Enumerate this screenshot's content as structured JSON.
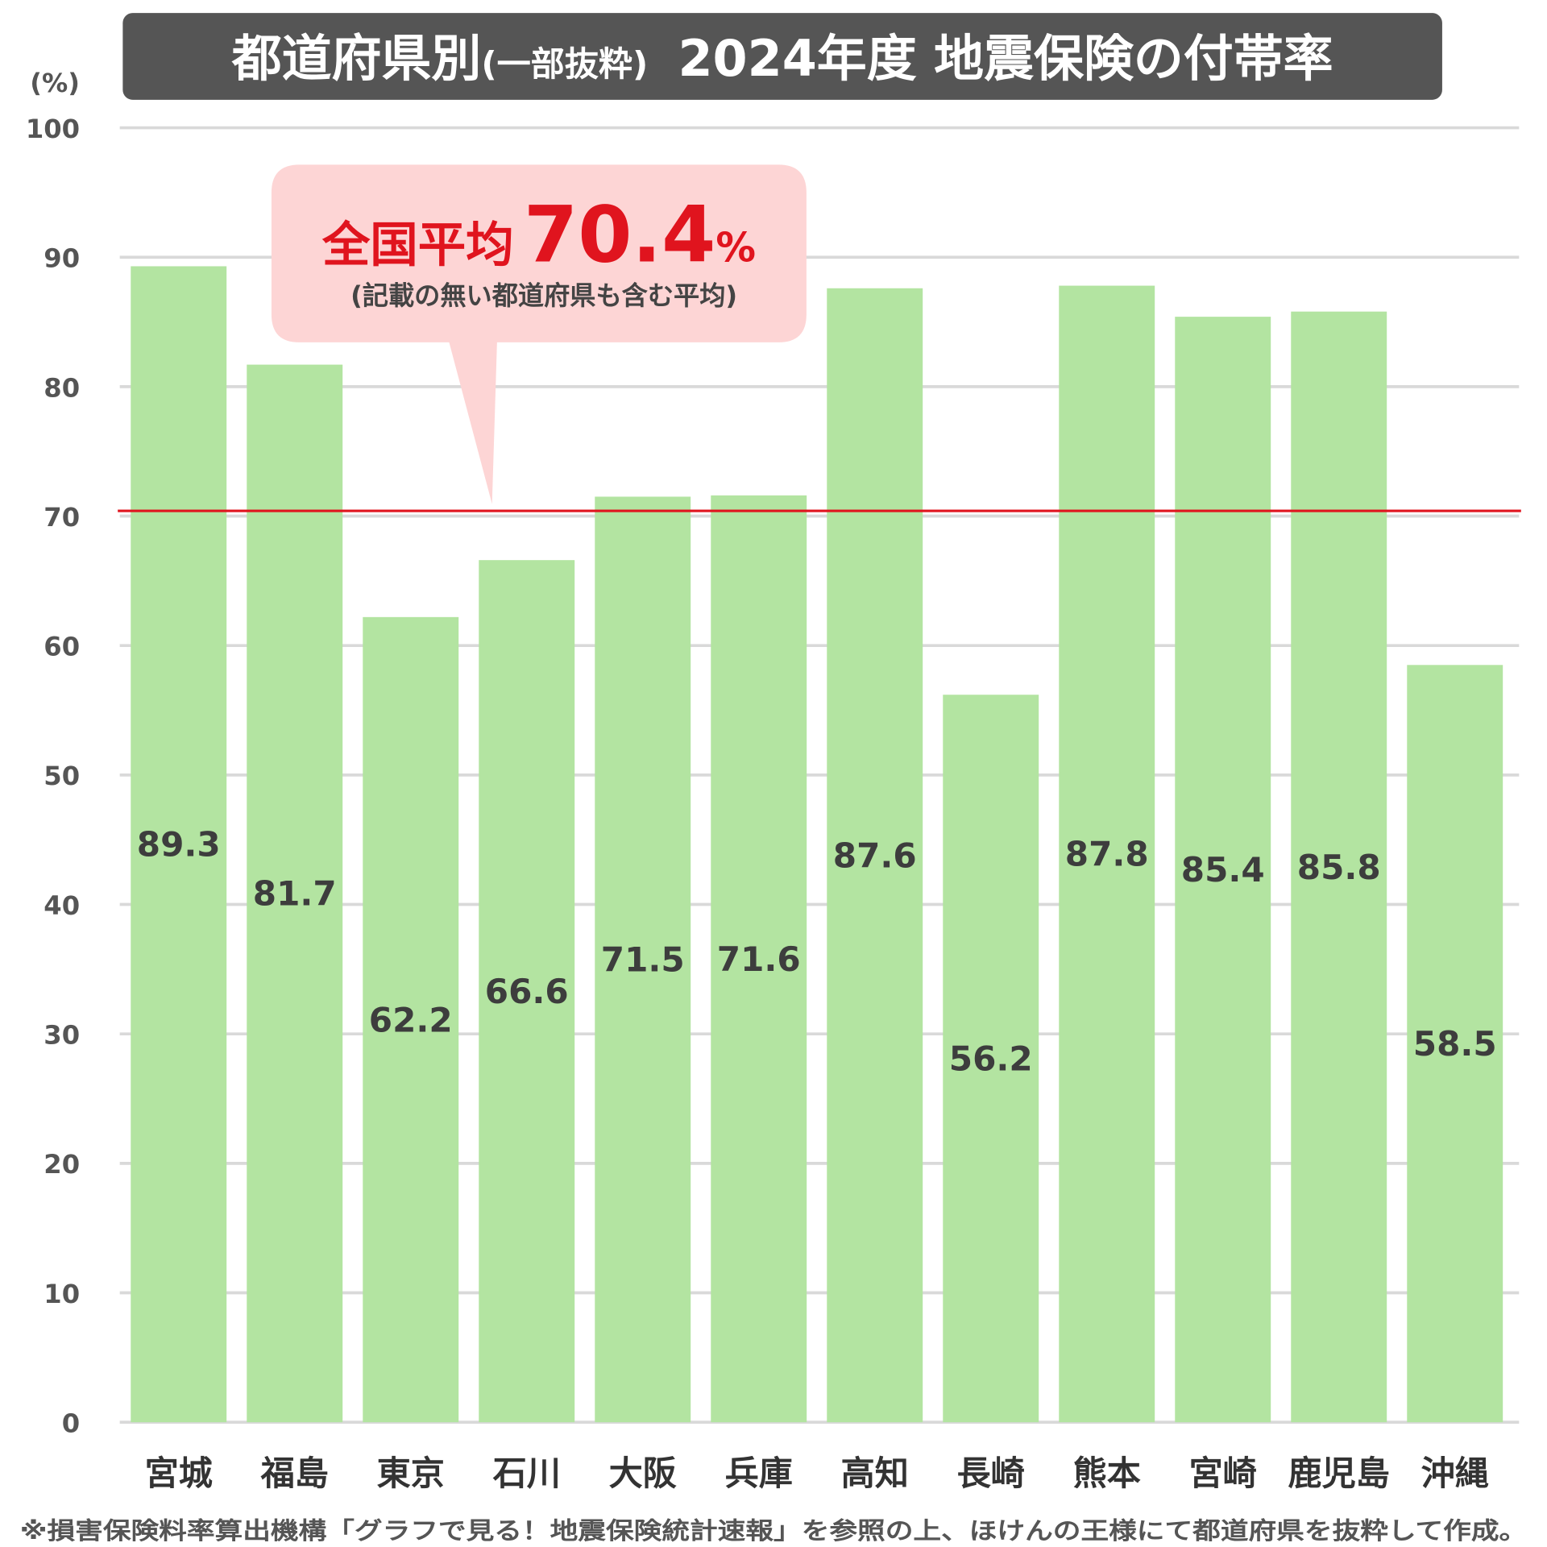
{
  "chart_data": {
    "type": "bar",
    "title": "都道府県別",
    "title_sub": "(一部抜粋)",
    "title_main": "2024年度 地震保険の付帯率",
    "ylabel": "(%)",
    "ylim": [
      0,
      100
    ],
    "yticks": [
      0,
      10,
      20,
      30,
      40,
      50,
      60,
      70,
      80,
      90,
      100
    ],
    "grid": true,
    "categories": [
      "宮城",
      "福島",
      "東京",
      "石川",
      "大阪",
      "兵庫",
      "高知",
      "長崎",
      "熊本",
      "宮崎",
      "鹿児島",
      "沖縄"
    ],
    "values": [
      89.3,
      81.7,
      62.2,
      66.6,
      71.5,
      71.6,
      87.6,
      56.2,
      87.8,
      85.4,
      85.8,
      58.5
    ],
    "data_labels": [
      "89.3",
      "81.7",
      "62.2",
      "66.6",
      "71.5",
      "71.6",
      "87.6",
      "56.2",
      "87.8",
      "85.4",
      "85.8",
      "58.5"
    ],
    "reference_line": {
      "value": 70.4,
      "label": "全国平均",
      "value_text": "70.4",
      "unit": "%",
      "note": "(記載の無い都道府県も含む平均)"
    },
    "footnote": "※損害保険料率算出機構「グラフで見る！地震保険統計速報」を参照の上、ほけんの王様にて都道府県を抜粋して作成。",
    "colors": {
      "bar": "#b3e4a1",
      "reference_line": "#e0141e",
      "title_bg": "#555555",
      "callout_bg": "#fdd5d5",
      "grid": "#d9d9d9"
    }
  }
}
